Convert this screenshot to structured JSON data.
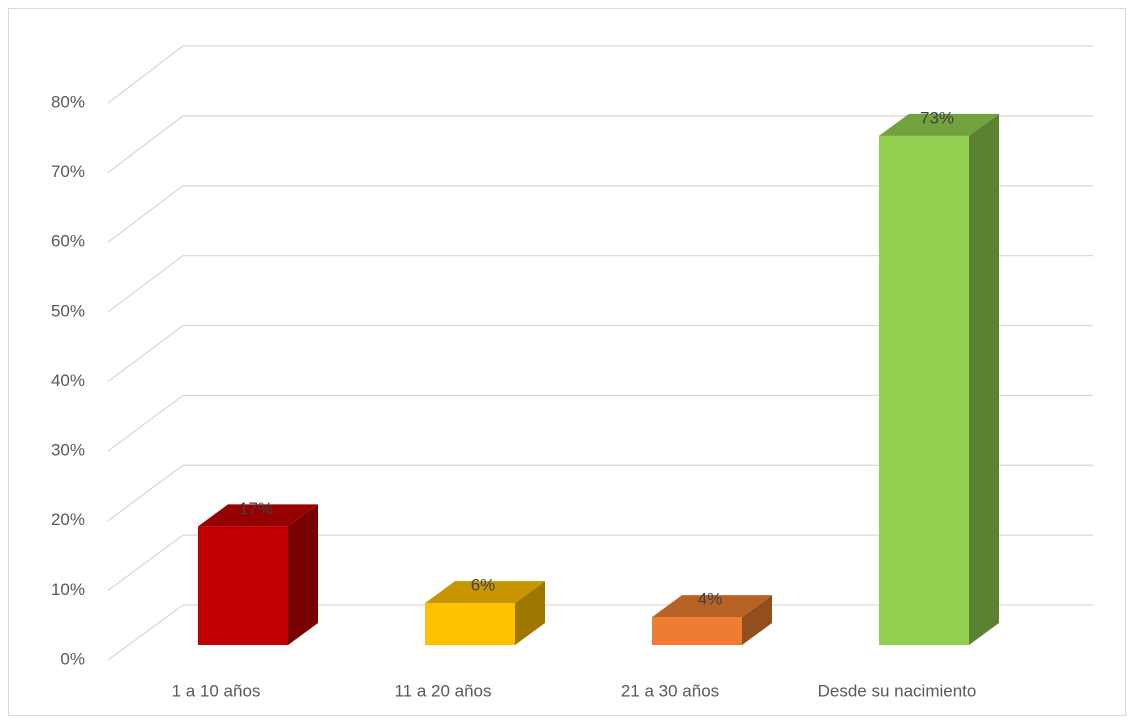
{
  "chart_data": {
    "type": "bar3d",
    "categories": [
      "1 a 10 años",
      "11 a 20 años",
      "21 a 30 años",
      "Desde su nacimiento"
    ],
    "values": [
      17,
      6,
      4,
      73
    ],
    "value_labels": [
      "17%",
      "6%",
      "4%",
      "73%"
    ],
    "colors": [
      "#c00000",
      "#ffc000",
      "#ed7d31",
      "#92d050"
    ],
    "ylim": [
      0,
      80
    ],
    "yticks": [
      {
        "value": 0,
        "label": "0%"
      },
      {
        "value": 10,
        "label": "10%"
      },
      {
        "value": 20,
        "label": "20%"
      },
      {
        "value": 30,
        "label": "30%"
      },
      {
        "value": 40,
        "label": "40%"
      },
      {
        "value": 50,
        "label": "50%"
      },
      {
        "value": 60,
        "label": "60%"
      },
      {
        "value": 70,
        "label": "70%"
      },
      {
        "value": 80,
        "label": "80%"
      }
    ],
    "grid": true
  }
}
